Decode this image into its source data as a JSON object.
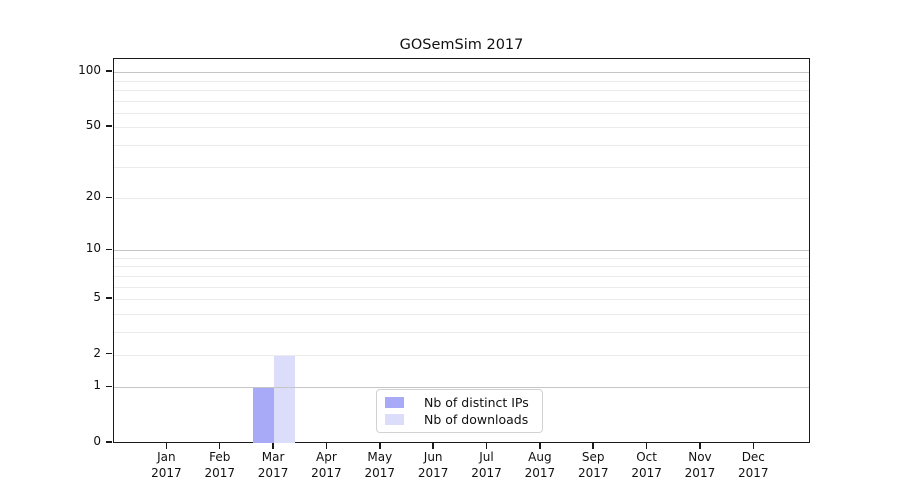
{
  "chart_data": {
    "type": "bar",
    "title": "GOSemSim 2017",
    "categories": [
      {
        "month": "Jan",
        "year": "2017"
      },
      {
        "month": "Feb",
        "year": "2017"
      },
      {
        "month": "Mar",
        "year": "2017"
      },
      {
        "month": "Apr",
        "year": "2017"
      },
      {
        "month": "May",
        "year": "2017"
      },
      {
        "month": "Jun",
        "year": "2017"
      },
      {
        "month": "Jul",
        "year": "2017"
      },
      {
        "month": "Aug",
        "year": "2017"
      },
      {
        "month": "Sep",
        "year": "2017"
      },
      {
        "month": "Oct",
        "year": "2017"
      },
      {
        "month": "Nov",
        "year": "2017"
      },
      {
        "month": "Dec",
        "year": "2017"
      }
    ],
    "series": [
      {
        "name": "Nb of distinct IPs",
        "color": "#a8a9f7",
        "values": [
          0,
          0,
          1,
          0,
          0,
          0,
          0,
          0,
          0,
          0,
          0,
          0
        ]
      },
      {
        "name": "Nb of downloads",
        "color": "#dbddfb",
        "values": [
          0,
          0,
          2,
          0,
          0,
          0,
          0,
          0,
          0,
          0,
          0,
          0
        ]
      }
    ],
    "y_axis": {
      "scale": "log1p",
      "tick_values": [
        0,
        1,
        2,
        5,
        10,
        20,
        50,
        100
      ],
      "tick_labels": [
        "0",
        "1",
        "2",
        "5",
        "10",
        "20",
        "50",
        "100"
      ],
      "major_gridlines": [
        1,
        10,
        100
      ],
      "minor_gridlines": [
        2,
        3,
        4,
        5,
        6,
        7,
        8,
        9,
        20,
        30,
        40,
        50,
        60,
        70,
        80,
        90
      ],
      "range_labels_min": 0,
      "range_labels_max": 100
    },
    "xlabel": "",
    "ylabel": "",
    "grid": "on",
    "legend": {
      "position": "bottom-center",
      "entries": [
        "Nb of distinct IPs",
        "Nb of downloads"
      ]
    }
  }
}
